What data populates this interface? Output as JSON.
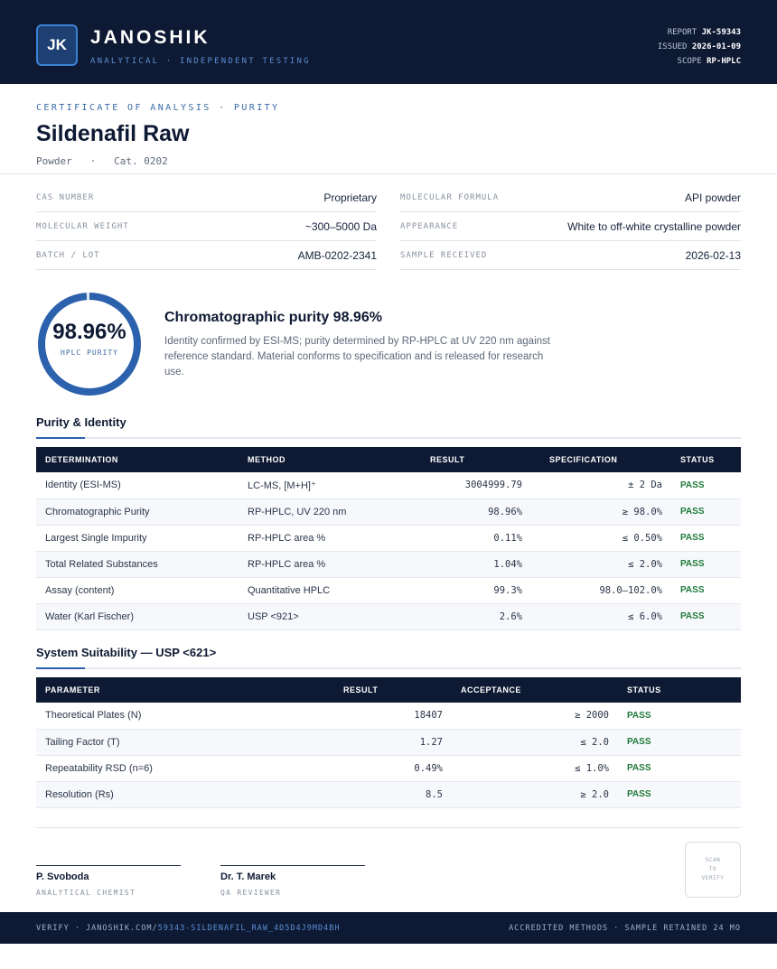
{
  "header": {
    "logo_text": "JK",
    "brand": "JANOSHIK",
    "tagline": "ANALYTICAL · INDEPENDENT TESTING",
    "report_label": "REPORT",
    "report_value": "JK-59343",
    "issued_label": "ISSUED",
    "issued_value": "2026-01-09",
    "scope_label": "SCOPE",
    "scope_value": "RP-HPLC"
  },
  "title": {
    "label": "CERTIFICATE OF ANALYSIS · PURITY",
    "product": "Sildenafil Raw",
    "form": "Powder",
    "separator": "·",
    "catalog": "Cat. 0202"
  },
  "info": {
    "cas_label": "CAS NUMBER",
    "cas_value": "Proprietary",
    "formula_label": "MOLECULAR FORMULA",
    "formula_value": "API powder",
    "mw_label": "MOLECULAR WEIGHT",
    "mw_value": "~300–5000 Da",
    "appearance_label": "APPEARANCE",
    "appearance_value": "White to off-white crystalline powder",
    "batch_label": "BATCH / LOT",
    "batch_value": "AMB-0202-2341",
    "received_label": "SAMPLE RECEIVED",
    "received_value": "2026-02-13"
  },
  "purity": {
    "value": "98.96%",
    "fraction": 0.9896,
    "ring_label": "HPLC PURITY",
    "heading": "Chromatographic purity 98.96%",
    "description": "Identity confirmed by ESI-MS; purity determined by RP-HPLC at UV 220 nm against reference standard. Material conforms to specification and is released for research use."
  },
  "purity_section": {
    "title": "Purity & Identity",
    "headers": [
      "DETERMINATION",
      "METHOD",
      "RESULT",
      "SPECIFICATION",
      "STATUS"
    ],
    "rows": [
      {
        "determination": "Identity (ESI-MS)",
        "method": "LC-MS, [M+H]⁺",
        "result": "3004999.79",
        "spec": "± 2 Da",
        "status": "PASS"
      },
      {
        "determination": "Chromatographic Purity",
        "method": "RP-HPLC, UV 220 nm",
        "result": "98.96%",
        "spec": "≥ 98.0%",
        "status": "PASS"
      },
      {
        "determination": "Largest Single Impurity",
        "method": "RP-HPLC area %",
        "result": "0.11%",
        "spec": "≤ 0.50%",
        "status": "PASS"
      },
      {
        "determination": "Total Related Substances",
        "method": "RP-HPLC area %",
        "result": "1.04%",
        "spec": "≤ 2.0%",
        "status": "PASS"
      },
      {
        "determination": "Assay (content)",
        "method": "Quantitative HPLC",
        "result": "99.3%",
        "spec": "98.0–102.0%",
        "status": "PASS"
      },
      {
        "determination": "Water (Karl Fischer)",
        "method": "USP <921>",
        "result": "2.6%",
        "spec": "≤ 6.0%",
        "status": "PASS"
      }
    ]
  },
  "suitability": {
    "title": "System Suitability — USP <621>",
    "headers": [
      "PARAMETER",
      "RESULT",
      "ACCEPTANCE",
      "STATUS"
    ],
    "rows": [
      {
        "parameter": "Theoretical Plates (N)",
        "result": "18407",
        "acceptance": "≥ 2000",
        "status": "PASS"
      },
      {
        "parameter": "Tailing Factor (T)",
        "result": "1.27",
        "acceptance": "≤ 2.0",
        "status": "PASS"
      },
      {
        "parameter": "Repeatability RSD (n=6)",
        "result": "0.49%",
        "acceptance": "≤ 1.0%",
        "status": "PASS"
      },
      {
        "parameter": "Resolution (Rs)",
        "result": "8.5",
        "acceptance": "≥ 2.0",
        "status": "PASS"
      }
    ]
  },
  "signatures": [
    {
      "name": "P. Svoboda",
      "role": "ANALYTICAL CHEMIST"
    },
    {
      "name": "Dr. T. Marek",
      "role": "QA REVIEWER"
    }
  ],
  "qr": {
    "line1": "SCAN",
    "line2": "TO",
    "line3": "VERIFY"
  },
  "footer": {
    "verify_prefix": "VERIFY · JANOSHIK.COM/",
    "verify_code": "59343-SILDENAFIL_RAW_4D5D4J9MD4BH",
    "right_text": "ACCREDITED METHODS · SAMPLE RETAINED 24 MO"
  },
  "colors": {
    "navy": "#0e1a33",
    "accent": "#2c62ad",
    "pass": "#1f7a3a"
  }
}
